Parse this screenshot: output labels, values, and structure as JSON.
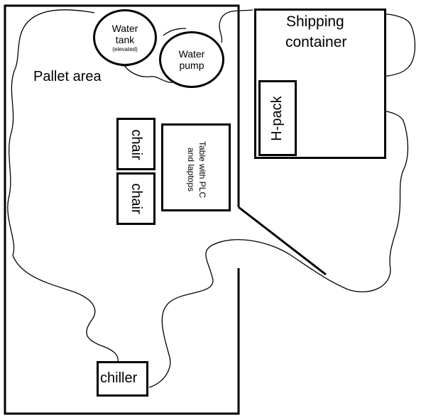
{
  "labels": {
    "pallet_area": "Pallet area",
    "shipping_container_line1": "Shipping",
    "shipping_container_line2": "container",
    "water_tank_line1": "Water",
    "water_tank_line2": "tank",
    "water_tank_note": "(elevated)",
    "water_pump_line1": "Water",
    "water_pump_line2": "pump",
    "chair_1": "chair",
    "chair_2": "chair",
    "table_line1": "Table with PLC",
    "table_line2": "and laptops",
    "hpack": "H-pack",
    "chiller": "chiller"
  },
  "colors": {
    "stroke": "#000000",
    "background": "#ffffff"
  }
}
